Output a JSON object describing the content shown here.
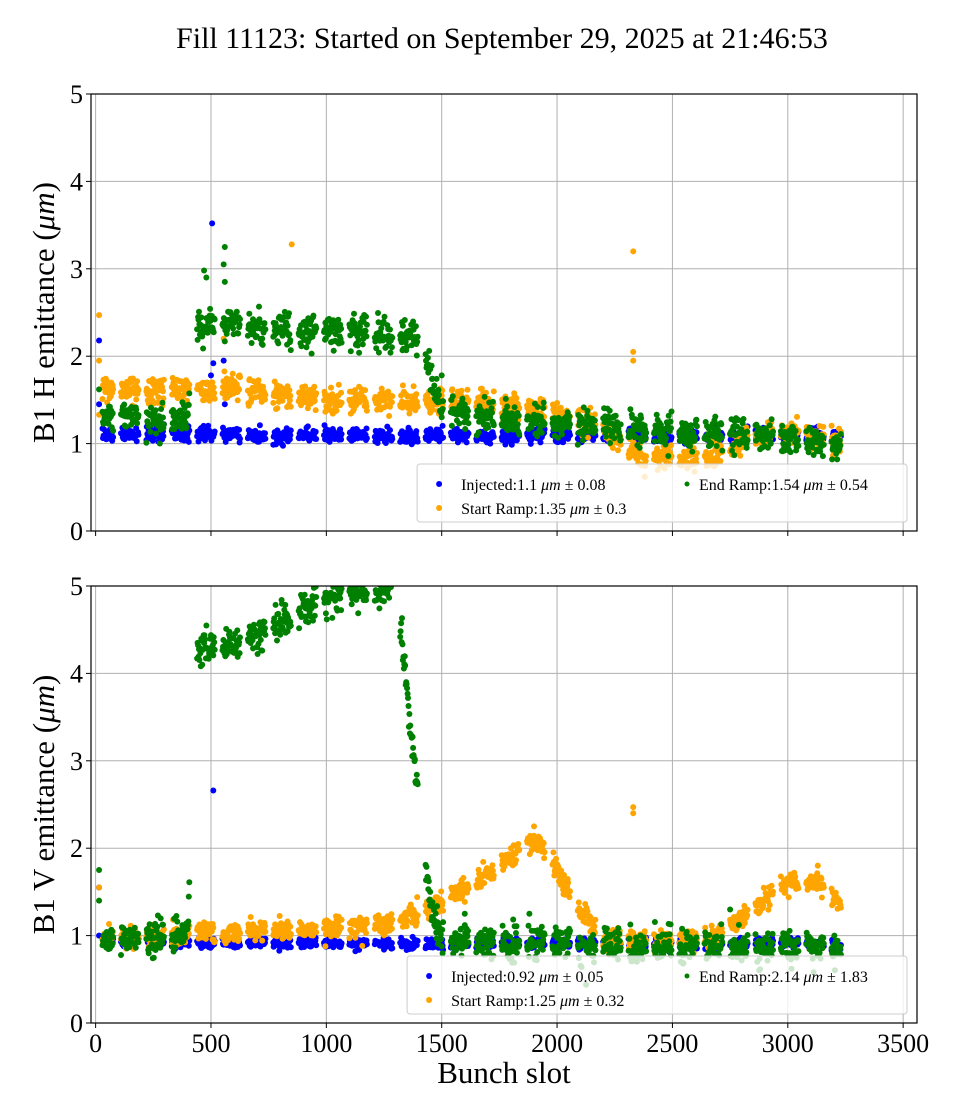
{
  "title": "Fill 11123: Started on September 29, 2025 at 21:46:53",
  "chart_data": [
    {
      "type": "scatter",
      "title": "Fill 11123: Started on September 29, 2025 at 21:46:53",
      "xlabel": "",
      "ylabel": "B1 H emittance (μm)",
      "ylabel_parts": {
        "pre": "B1 H emittance (",
        "unit": "μm",
        "post": ")"
      },
      "xlim": [
        -20,
        3560
      ],
      "ylim": [
        0,
        5
      ],
      "xticks": [
        0,
        500,
        1000,
        1500,
        2000,
        2500,
        3000,
        3500
      ],
      "yticks": [
        0,
        1,
        2,
        3,
        4,
        5
      ],
      "grid": true,
      "legend_placement": "lower-right",
      "series": [
        {
          "name": "Injected",
          "label": "Injected:1.1",
          "unit": "μm",
          "pm": "± 0.08",
          "color": "#0000ff",
          "trend": [
            [
              60,
              1.1
            ],
            [
              450,
              1.12
            ],
            [
              560,
              1.12
            ],
            [
              800,
              1.07
            ],
            [
              1000,
              1.1
            ],
            [
              1500,
              1.08
            ],
            [
              2000,
              1.1
            ],
            [
              2500,
              1.08
            ],
            [
              3000,
              1.08
            ],
            [
              3230,
              1.08
            ]
          ],
          "spread": 0.04,
          "outliers": [
            [
              505,
              3.52
            ],
            [
              510,
              1.92
            ],
            [
              500,
              1.78
            ],
            [
              555,
              1.95
            ],
            [
              560,
              1.45
            ],
            [
              15,
              2.18
            ],
            [
              15,
              1.45
            ],
            [
              555,
              2.35
            ]
          ]
        },
        {
          "name": "Start Ramp",
          "label": "Start Ramp:1.35",
          "unit": "μm",
          "pm": "± 0.3",
          "color": "#ffa500",
          "trend": [
            [
              60,
              1.62
            ],
            [
              450,
              1.62
            ],
            [
              560,
              1.65
            ],
            [
              1000,
              1.5
            ],
            [
              1450,
              1.47
            ],
            [
              1550,
              1.5
            ],
            [
              1900,
              1.4
            ],
            [
              2200,
              1.2
            ],
            [
              2350,
              0.85
            ],
            [
              2650,
              0.82
            ],
            [
              2800,
              1.05
            ],
            [
              3050,
              1.15
            ],
            [
              3230,
              1.0
            ]
          ],
          "spread": 0.07,
          "outliers": [
            [
              15,
              2.47
            ],
            [
              15,
              1.95
            ],
            [
              15,
              1.33
            ],
            [
              850,
              3.28
            ],
            [
              2330,
              3.2
            ],
            [
              2330,
              2.05
            ],
            [
              2330,
              1.95
            ],
            [
              555,
              2.2
            ]
          ]
        },
        {
          "name": "End Ramp",
          "label": "End Ramp:1.54",
          "unit": "μm",
          "pm": "± 0.54",
          "color": "#008000",
          "trend": [
            [
              60,
              1.3
            ],
            [
              400,
              1.28
            ],
            [
              430,
              2.35
            ],
            [
              560,
              2.35
            ],
            [
              900,
              2.28
            ],
            [
              1000,
              2.32
            ],
            [
              1400,
              2.22
            ],
            [
              1500,
              1.38
            ],
            [
              2000,
              1.22
            ],
            [
              2500,
              1.15
            ],
            [
              3000,
              1.05
            ],
            [
              3230,
              0.98
            ]
          ],
          "spread": 0.09,
          "outliers": [
            [
              470,
              2.98
            ],
            [
              480,
              2.9
            ],
            [
              560,
              3.25
            ],
            [
              555,
              3.05
            ],
            [
              560,
              2.85
            ],
            [
              15,
              1.62
            ],
            [
              1500,
              1.78
            ]
          ]
        }
      ]
    },
    {
      "type": "scatter",
      "xlabel": "Bunch slot",
      "ylabel": "B1 V emittance (μm)",
      "ylabel_parts": {
        "pre": "B1 V emittance (",
        "unit": "μm",
        "post": ")"
      },
      "xlim": [
        -20,
        3560
      ],
      "ylim": [
        0,
        5
      ],
      "xticks": [
        0,
        500,
        1000,
        1500,
        2000,
        2500,
        3000,
        3500
      ],
      "yticks": [
        0,
        1,
        2,
        3,
        4,
        5
      ],
      "grid": true,
      "legend_placement": "lower-right",
      "series": [
        {
          "name": "Injected",
          "label": "Injected:0.92",
          "unit": "μm",
          "pm": "± 0.05",
          "color": "#0000ff",
          "trend": [
            [
              60,
              0.95
            ],
            [
              500,
              0.92
            ],
            [
              1000,
              0.92
            ],
            [
              1500,
              0.9
            ],
            [
              2000,
              0.92
            ],
            [
              2500,
              0.9
            ],
            [
              3000,
              0.92
            ],
            [
              3230,
              0.88
            ]
          ],
          "spread": 0.03,
          "outliers": [
            [
              510,
              2.66
            ],
            [
              15,
              1.55
            ],
            [
              15,
              1.0
            ]
          ]
        },
        {
          "name": "Start Ramp",
          "label": "Start Ramp:1.25",
          "unit": "μm",
          "pm": "± 0.32",
          "color": "#ffa500",
          "trend": [
            [
              60,
              0.95
            ],
            [
              500,
              1.05
            ],
            [
              1000,
              1.08
            ],
            [
              1300,
              1.15
            ],
            [
              1500,
              1.4
            ],
            [
              1700,
              1.7
            ],
            [
              1900,
              2.1
            ],
            [
              1950,
              1.95
            ],
            [
              2050,
              1.5
            ],
            [
              2200,
              0.95
            ],
            [
              2650,
              0.95
            ],
            [
              2800,
              1.2
            ],
            [
              3000,
              1.6
            ],
            [
              3120,
              1.62
            ],
            [
              3230,
              1.35
            ]
          ],
          "spread": 0.06,
          "outliers": [
            [
              2330,
              2.47
            ],
            [
              2330,
              2.4
            ],
            [
              15,
              1.55
            ],
            [
              3130,
              1.8
            ],
            [
              1900,
              2.25
            ]
          ]
        },
        {
          "name": "End Ramp",
          "label": "End Ramp:2.14",
          "unit": "μm",
          "pm": "± 1.83",
          "color": "#008000",
          "trend": [
            [
              60,
              0.95
            ],
            [
              400,
              1.02
            ],
            [
              430,
              4.3
            ],
            [
              600,
              4.3
            ],
            [
              800,
              4.6
            ],
            [
              1000,
              4.9
            ],
            [
              1300,
              5.0
            ],
            [
              1450,
              1.35
            ],
            [
              1500,
              0.95
            ],
            [
              2000,
              0.9
            ],
            [
              2500,
              0.88
            ],
            [
              3000,
              0.86
            ],
            [
              3230,
              0.85
            ]
          ],
          "spread": 0.1,
          "outliers": [
            [
              15,
              1.75
            ],
            [
              15,
              1.4
            ],
            [
              1450,
              1.5
            ],
            [
              1600,
              1.25
            ],
            [
              1880,
              1.25
            ]
          ]
        }
      ]
    }
  ]
}
